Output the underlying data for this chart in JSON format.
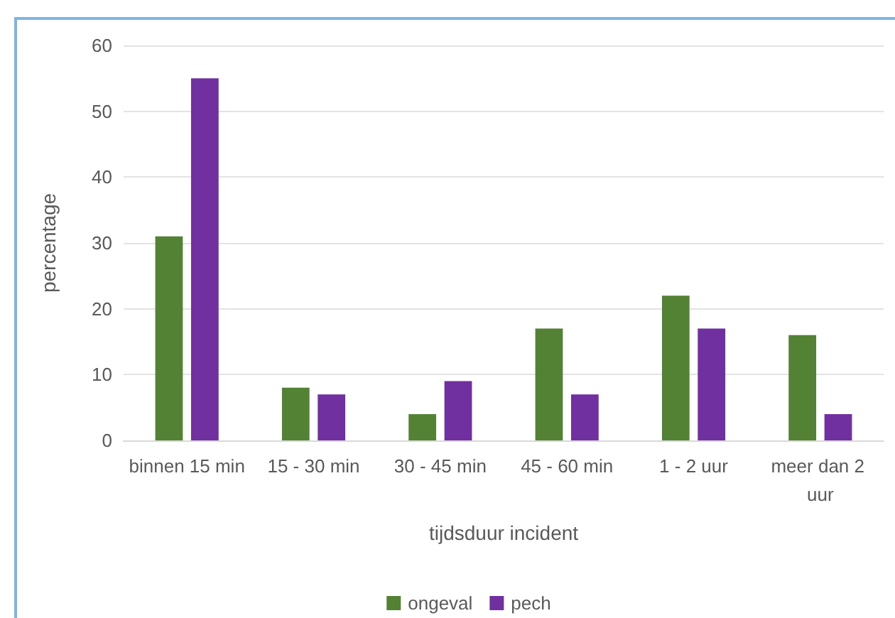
{
  "chart_data": {
    "type": "bar",
    "xlabel": "tijdsduur incident",
    "ylabel": "percentage",
    "categories": [
      "binnen 15 min",
      "15 - 30 min",
      "30 - 45 min",
      "45 - 60 min",
      "1 - 2 uur",
      "meer dan 2 uur"
    ],
    "series": [
      {
        "name": "ongeval",
        "color": "#548235",
        "values": [
          31,
          8,
          4,
          17,
          22,
          16
        ]
      },
      {
        "name": "pech",
        "color": "#7030a0",
        "values": [
          55,
          7,
          9,
          7,
          17,
          4
        ]
      }
    ],
    "ylim": [
      0,
      60
    ],
    "yticks": [
      0,
      10,
      20,
      30,
      40,
      50,
      60
    ],
    "grid": "y",
    "legend": "bottom"
  }
}
